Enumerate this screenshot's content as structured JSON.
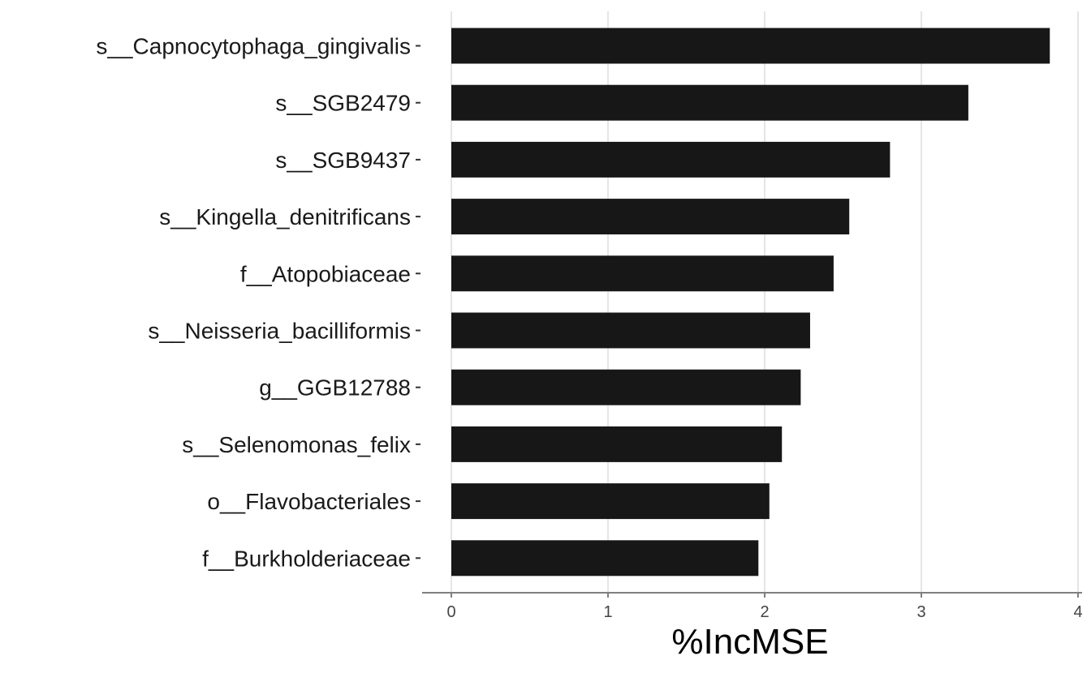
{
  "chart_data": {
    "type": "bar",
    "orientation": "horizontal",
    "categories": [
      "s__Capnocytophaga_gingivalis",
      "s__SGB2479",
      "s__SGB9437",
      "s__Kingella_denitrificans",
      "f__Atopobiaceae",
      "s__Neisseria_bacilliformis",
      "g__GGB12788",
      "s__Selenomonas_felix",
      "o__Flavobacteriales",
      "f__Burkholderiaceae"
    ],
    "values": [
      3.82,
      3.3,
      2.8,
      2.54,
      2.44,
      2.29,
      2.23,
      2.11,
      2.03,
      1.96
    ],
    "xlabel": "%IncMSE",
    "ylabel": "",
    "title": "",
    "xlim": [
      0,
      4
    ],
    "xticks": [
      0,
      1,
      2,
      3,
      4
    ],
    "xtick_labels": [
      "0",
      "1",
      "2",
      "3",
      "4"
    ],
    "grid": "vertical-major",
    "legend": "none",
    "bar_color": "#171717",
    "grid_color": "#e5e5e5",
    "axis_color": "#7f7f7f"
  }
}
